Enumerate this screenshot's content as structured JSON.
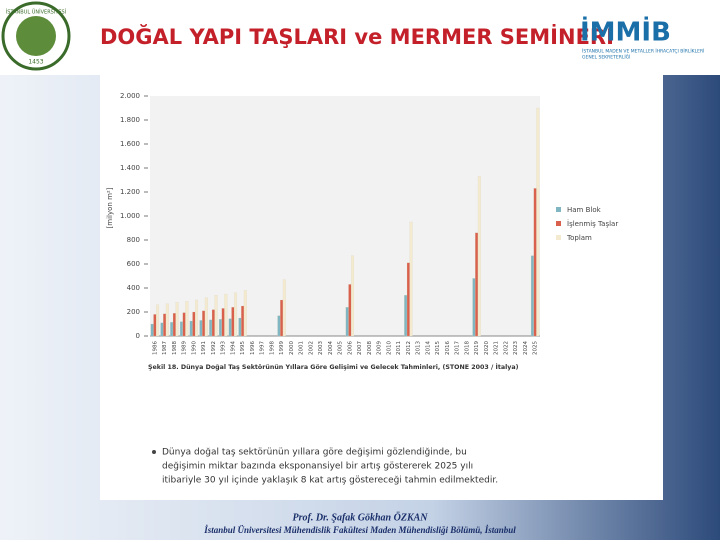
{
  "slide": {
    "title": "DOĞAL YAPI TAŞLARI ve MERMER SEMİNERİ",
    "logo_left": {
      "text": "İSTANBUL ÜNİVERSİTESİ",
      "year": "1453"
    },
    "logo_right": {
      "name": "İMMİB",
      "subtitle": [
        "İSTANBUL MADEN VE METALLER İHRACATÇI BİRLİKLERİ",
        "GENEL SEKRETERLİĞİ"
      ]
    },
    "caption": "Şekil 18. Dünya Doğal Taş Sektörünün Yıllara Göre Gelişimi ve Gelecek Tahminleri, (STONE 2003 / İtalya)",
    "bullet_lines": [
      "Dünya doğal taş sektörünün yıllara göre değişimi gözlendiğinde, bu",
      "değişimin miktar bazında eksponansiyel bir artış göstererek 2025 yılı",
      "itibariyle 30 yıl içinde yaklaşık 8 kat artış göstereceği tahmin edilmektedir."
    ],
    "footer": {
      "author": "Prof. Dr. Şafak Gökhan ÖZKAN",
      "affiliation": "İstanbul Üniversitesi Mühendislik Fakültesi Maden Mühendisliği Bölümü, İstanbul"
    }
  },
  "chart_data": {
    "type": "bar",
    "y_label": "[milyon m²]",
    "categories": [
      "1986",
      "1987",
      "1988",
      "1989",
      "1990",
      "1991",
      "1992",
      "1993",
      "1994",
      "1995",
      "1996",
      "1997",
      "1998",
      "1999",
      "2000",
      "2001",
      "2002",
      "2003",
      "2004",
      "2005",
      "2006",
      "2007",
      "2008",
      "2009",
      "2010",
      "2011",
      "2012",
      "2013",
      "2014",
      "2015",
      "2016",
      "2017",
      "2018",
      "2019",
      "2020",
      "2021",
      "2022",
      "2023",
      "2024",
      "2025"
    ],
    "series": [
      {
        "name": "Ham Blok",
        "color": "#80b6c2",
        "values": [
          100,
          110,
          115,
          120,
          125,
          130,
          135,
          140,
          145,
          150,
          null,
          null,
          null,
          170,
          null,
          null,
          null,
          null,
          null,
          null,
          240,
          null,
          null,
          null,
          null,
          null,
          340,
          null,
          null,
          null,
          null,
          null,
          null,
          480,
          null,
          null,
          null,
          null,
          null,
          670
        ]
      },
      {
        "name": "İşlenmiş Taşlar",
        "color": "#d8604c",
        "values": [
          180,
          185,
          190,
          195,
          200,
          210,
          220,
          230,
          240,
          250,
          null,
          null,
          null,
          300,
          null,
          null,
          null,
          null,
          null,
          null,
          430,
          null,
          null,
          null,
          null,
          null,
          610,
          null,
          null,
          null,
          null,
          null,
          null,
          860,
          null,
          null,
          null,
          null,
          null,
          1230
        ]
      },
      {
        "name": "Toplam",
        "color": "#f3ead0",
        "values": [
          260,
          270,
          280,
          290,
          300,
          320,
          340,
          350,
          360,
          380,
          null,
          null,
          null,
          470,
          null,
          null,
          null,
          null,
          null,
          null,
          670,
          null,
          null,
          null,
          null,
          null,
          950,
          null,
          null,
          null,
          null,
          null,
          null,
          1330,
          null,
          null,
          null,
          null,
          null,
          1900
        ]
      }
    ],
    "ylim": [
      0,
      2000
    ],
    "yticks": [
      0,
      200,
      400,
      600,
      800,
      {
        "value": 1000,
        "label": "1.000"
      },
      {
        "value": 1200,
        "label": "1.200"
      },
      {
        "value": 1400,
        "label": "1.400"
      },
      {
        "value": 1600,
        "label": "1.600"
      },
      {
        "value": 1800,
        "label": "1.800"
      },
      {
        "value": 2000,
        "label": "2.000"
      }
    ],
    "grid": false,
    "legend": "right"
  }
}
